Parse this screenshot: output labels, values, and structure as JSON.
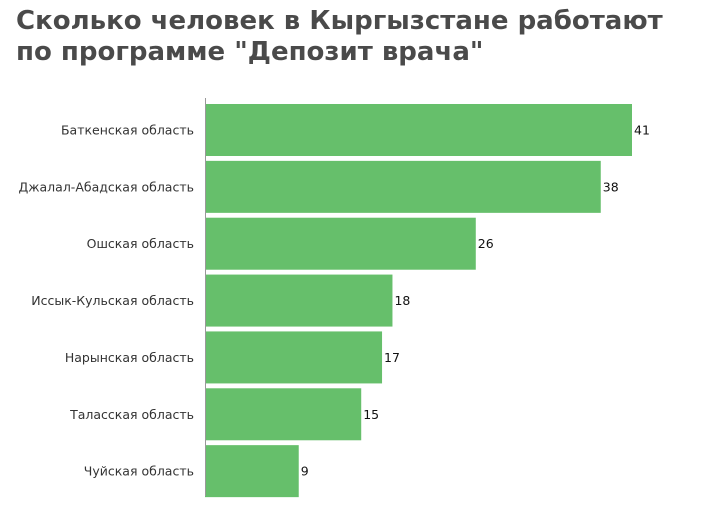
{
  "chart_data": {
    "type": "bar",
    "orientation": "horizontal",
    "title": "Сколько человек в Кыргызстане работают по программе \"Депозит врача\"",
    "categories": [
      "Баткенская область",
      "Джалал-Абадская область",
      "Ошская область",
      "Иссык-Кульская область",
      "Нарынская область",
      "Таласская область",
      "Чуйская область"
    ],
    "values": [
      41,
      38,
      26,
      18,
      17,
      15,
      9
    ],
    "xlim": [
      0,
      41
    ],
    "grid": false,
    "legend": "none",
    "bar_color": "#66bf6b",
    "axis_color": "#999999"
  }
}
